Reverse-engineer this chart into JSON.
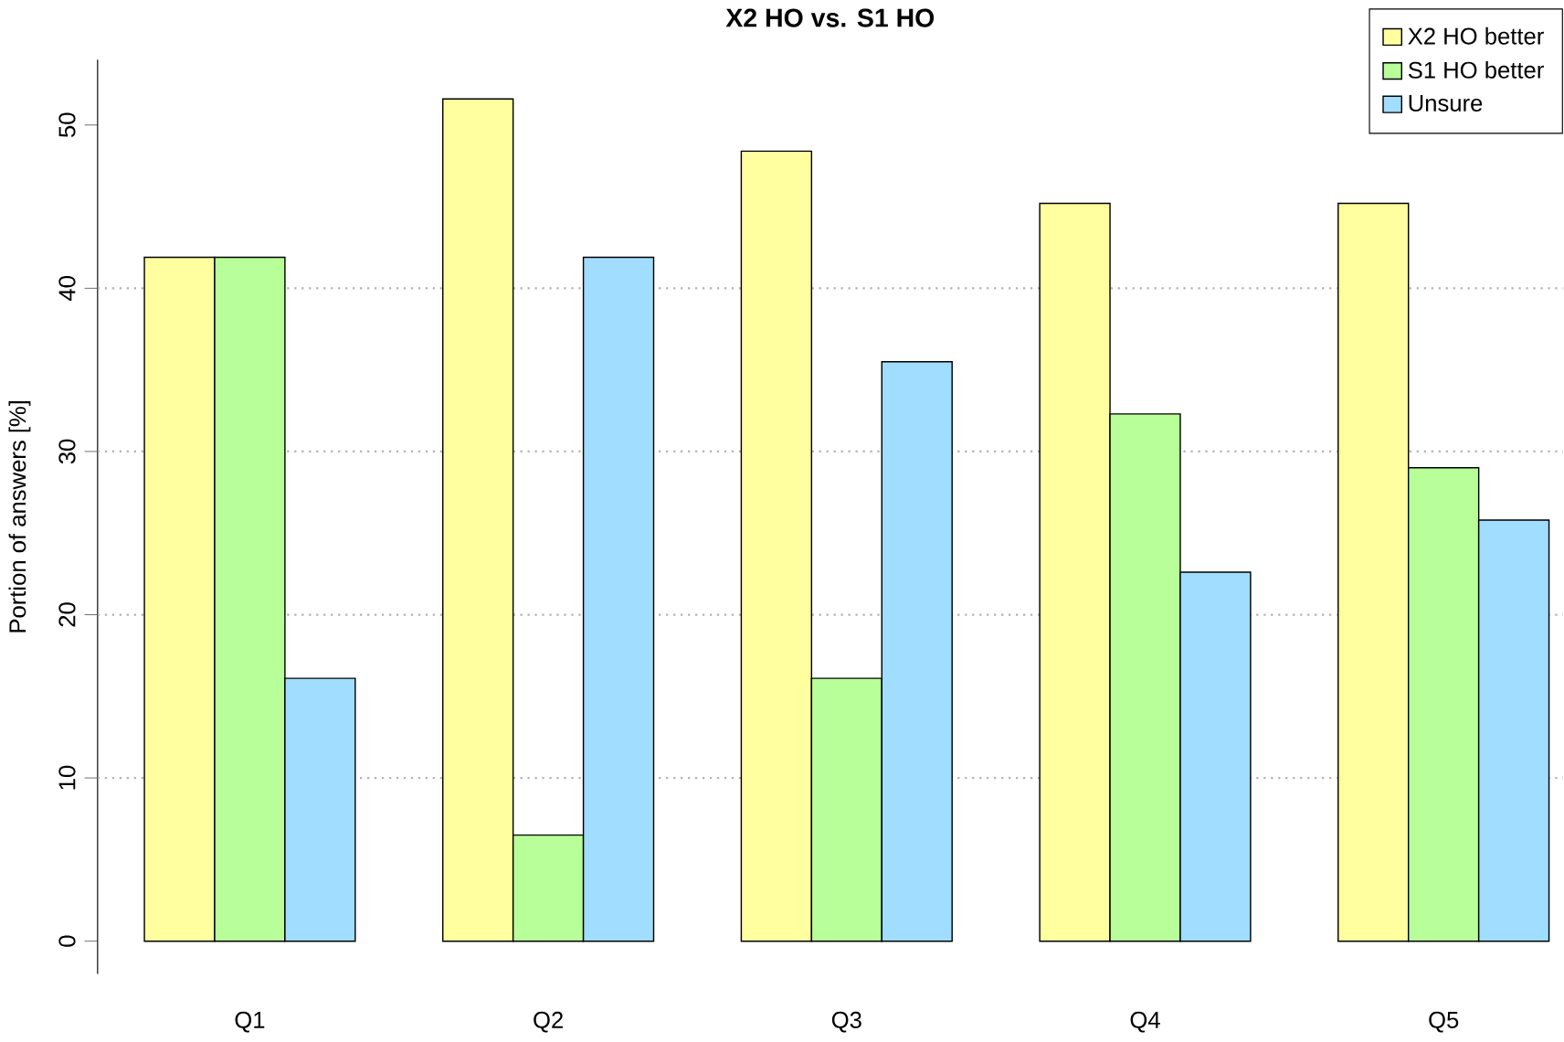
{
  "chart_data": {
    "type": "bar",
    "title": "X2 HO vs. S1 HO",
    "ylabel": "Portion of answers [%]",
    "categories": [
      "Q1",
      "Q2",
      "Q3",
      "Q4",
      "Q5"
    ],
    "series": [
      {
        "name": "X2 HO better",
        "color": "#ffffa0",
        "values": [
          41.9,
          51.6,
          48.4,
          45.2,
          45.2
        ]
      },
      {
        "name": "S1 HO better",
        "color": "#b8ff99",
        "values": [
          41.9,
          6.5,
          16.1,
          32.3,
          29.0
        ]
      },
      {
        "name": "Unsure",
        "color": "#a0ddff",
        "values": [
          16.1,
          41.9,
          35.5,
          22.6,
          25.8
        ]
      }
    ],
    "ylim": [
      -2,
      54
    ],
    "yticks": [
      0,
      10,
      20,
      30,
      40,
      50
    ],
    "ref_lines": [
      {
        "axis": "y",
        "value": 10,
        "color": "#b3b3b3",
        "line_style": "dotted"
      },
      {
        "axis": "y",
        "value": 20,
        "color": "#b3b3b3",
        "line_style": "dotted"
      },
      {
        "axis": "y",
        "value": 30,
        "color": "#b3b3b3",
        "line_style": "dotted"
      },
      {
        "axis": "y",
        "value": 40,
        "color": "#b3b3b3",
        "line_style": "dotted"
      }
    ],
    "legend": "top right"
  }
}
